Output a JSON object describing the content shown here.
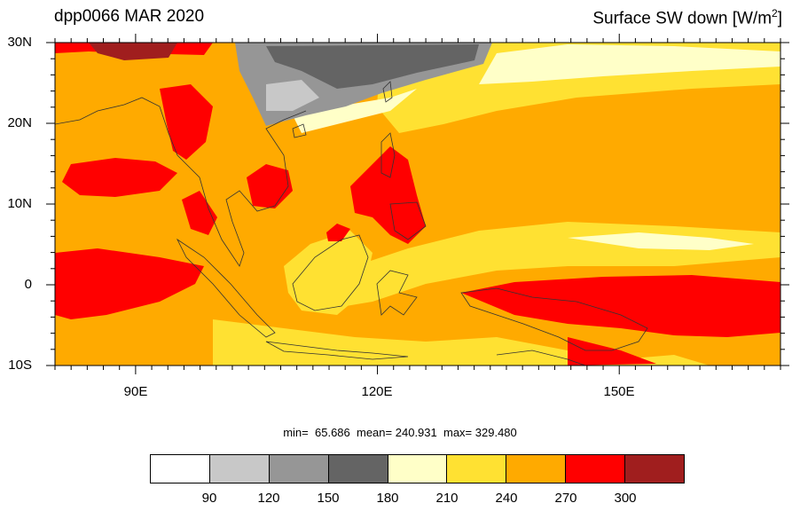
{
  "title_left": "dpp0066 MAR 2020",
  "title_right_main": "Surface SW down [W/m",
  "title_right_sup": "2",
  "title_right_end": "]",
  "lat_labels": [
    "30N",
    "20N",
    "10N",
    "0",
    "10S"
  ],
  "lon_labels": [
    "90E",
    "120E",
    "150E"
  ],
  "stats": {
    "min_label": "min=",
    "min": "65.686",
    "mean_label": "mean=",
    "mean": "240.931",
    "max_label": "max=",
    "max": "329.480"
  },
  "colorbar": {
    "colors": [
      "#ffffff",
      "#c8c8c8",
      "#969696",
      "#646464",
      "#ffffc8",
      "#ffe132",
      "#ffaa00",
      "#ff0000",
      "#a01e1e"
    ],
    "labels": [
      "90",
      "120",
      "150",
      "180",
      "210",
      "240",
      "270",
      "300"
    ]
  },
  "map_extent": {
    "lon": [
      80,
      170
    ],
    "lat": [
      -10,
      30
    ]
  }
}
